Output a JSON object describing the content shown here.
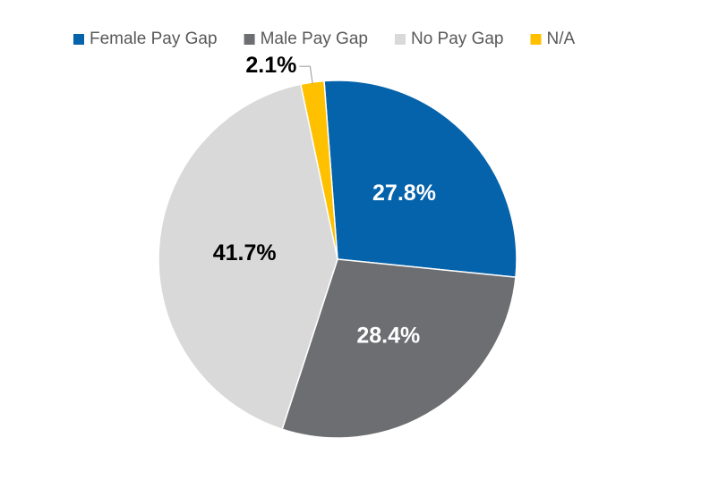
{
  "chart_data": {
    "type": "pie",
    "title": "",
    "categories": [
      "Female Pay Gap",
      "Male Pay Gap",
      "No Pay Gap",
      "N/A"
    ],
    "values": [
      27.8,
      28.4,
      41.7,
      2.1
    ],
    "labels": [
      "27.8%",
      "28.4%",
      "41.7%",
      "2.1%"
    ],
    "colors": [
      "#0563AB",
      "#6D6E71",
      "#D9D9D9",
      "#FFC000"
    ],
    "label_colors": [
      "#FFFFFF",
      "#FFFFFF",
      "#000000",
      "#000000"
    ],
    "legend_position": "top"
  }
}
